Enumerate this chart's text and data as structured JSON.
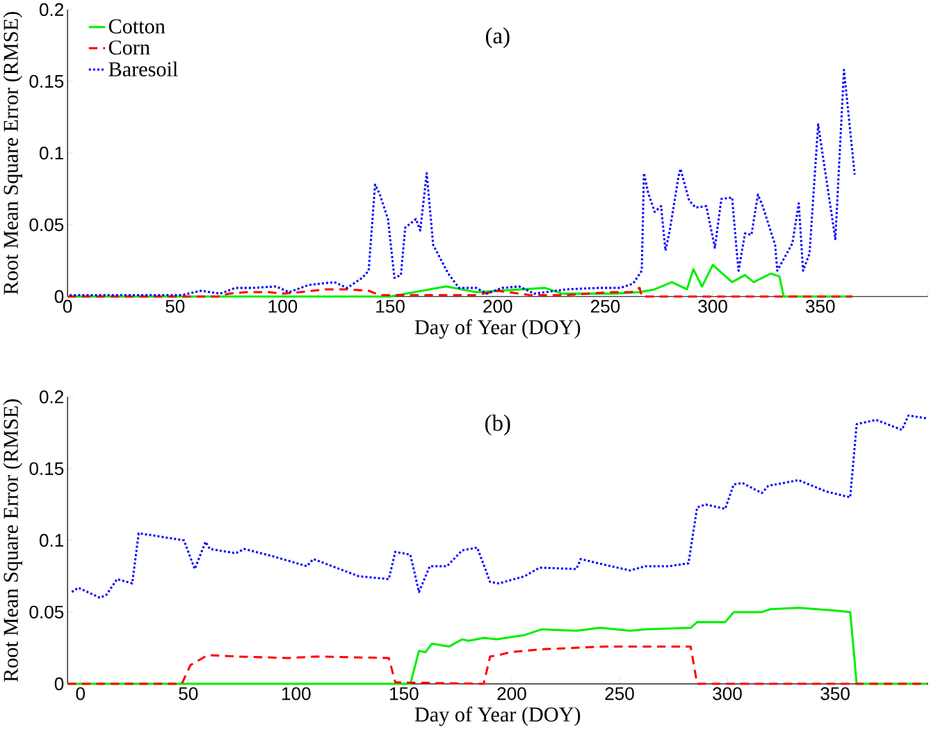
{
  "chart_data": [
    {
      "type": "line",
      "title": "(a)",
      "xlabel": "Day of Year (DOY)",
      "ylabel": "Root Mean Square Error (RMSE)",
      "xlim": [
        0,
        400
      ],
      "ylim": [
        0,
        0.2
      ],
      "xticks": [
        0,
        50,
        100,
        150,
        200,
        250,
        300,
        350,
        {
          "value": 400,
          "label": null
        }
      ],
      "yticks": [
        0,
        0.05,
        0.1,
        0.15,
        0.2
      ],
      "legend": "top left",
      "series": [
        {
          "name": "Cotton",
          "color": "#00ee00",
          "line_style": "solid",
          "x": [
            0,
            150,
            176,
            190,
            222,
            230,
            254,
            266,
            273,
            281,
            288,
            291,
            295,
            300,
            309,
            315,
            319,
            327,
            331,
            333,
            365
          ],
          "values": [
            0,
            0,
            0.007,
            0.003,
            0.006,
            0.002,
            0.002,
            0.003,
            0.005,
            0.01,
            0.005,
            0.019,
            0.007,
            0.022,
            0.01,
            0.015,
            0.01,
            0.016,
            0.014,
            0,
            0
          ]
        },
        {
          "name": "Corn",
          "color": "#ff0000",
          "line_style": "dashed",
          "x": [
            0,
            70,
            75,
            83,
            94,
            100,
            108,
            120,
            130,
            140,
            145,
            190,
            200,
            205,
            215,
            232,
            252,
            262,
            266,
            267,
            365
          ],
          "values": [
            0,
            0,
            0.002,
            0.003,
            0.003,
            0.002,
            0.003,
            0.005,
            0.005,
            0.004,
            0.001,
            0.001,
            0.004,
            0.003,
            0.001,
            0.001,
            0.003,
            0.003,
            0.006,
            0,
            0
          ]
        },
        {
          "name": "Baresoil",
          "color": "#0000ff",
          "line_style": "dotted",
          "x": [
            1,
            53,
            62,
            71,
            78,
            86,
            97,
            103,
            112,
            124,
            130,
            137,
            140,
            143,
            145,
            149,
            152,
            155,
            157,
            162,
            164,
            167,
            170,
            177,
            182,
            190,
            195,
            202,
            210,
            217,
            232,
            247,
            257,
            263,
            267,
            268,
            270,
            273,
            276,
            278,
            280,
            284,
            285,
            289,
            292,
            297,
            301,
            304,
            309,
            311,
            312,
            315,
            318,
            321,
            323,
            329,
            330,
            337,
            340,
            342,
            345,
            349,
            357,
            361,
            366
          ],
          "values": [
            0.001,
            0.001,
            0.004,
            0.002,
            0.006,
            0.006,
            0.007,
            0.003,
            0.008,
            0.01,
            0.006,
            0.013,
            0.018,
            0.078,
            0.072,
            0.054,
            0.013,
            0.015,
            0.048,
            0.054,
            0.046,
            0.086,
            0.036,
            0.016,
            0.006,
            0.006,
            0.002,
            0.006,
            0.007,
            0.002,
            0.005,
            0.006,
            0.006,
            0.009,
            0.018,
            0.086,
            0.072,
            0.059,
            0.063,
            0.032,
            0.046,
            0.083,
            0.089,
            0.067,
            0.062,
            0.063,
            0.034,
            0.068,
            0.069,
            0.034,
            0.018,
            0.044,
            0.043,
            0.071,
            0.064,
            0.036,
            0.018,
            0.037,
            0.065,
            0.018,
            0.03,
            0.12,
            0.04,
            0.158,
            0.085
          ]
        }
      ]
    },
    {
      "type": "line",
      "title": "(b)",
      "xlabel": "Day of Year (DOY)",
      "ylabel": "Root Mean Square Error (RMSE)",
      "xlim": [
        -6,
        393
      ],
      "ylim": [
        0,
        0.2
      ],
      "xticks": [
        0,
        50,
        100,
        150,
        200,
        250,
        300,
        350
      ],
      "yticks": [
        0,
        0.05,
        0.1,
        0.15,
        0.2
      ],
      "series": [
        {
          "color": "#00ee00",
          "line_style": "solid",
          "x": [
            -6,
            153,
            157,
            160,
            163,
            171,
            177,
            180,
            187,
            193,
            206,
            214,
            230,
            241,
            255,
            262,
            283,
            286,
            299,
            303,
            316,
            320,
            333,
            350,
            357,
            360,
            393
          ],
          "values": [
            0,
            0,
            0.023,
            0.022,
            0.028,
            0.026,
            0.031,
            0.03,
            0.032,
            0.031,
            0.034,
            0.038,
            0.037,
            0.039,
            0.037,
            0.038,
            0.039,
            0.043,
            0.043,
            0.05,
            0.05,
            0.052,
            0.053,
            0.051,
            0.05,
            0,
            0
          ]
        },
        {
          "color": "#ff0000",
          "line_style": "dashed",
          "x": [
            -6,
            47,
            51,
            59,
            73,
            96,
            110,
            143,
            146,
            187,
            190,
            194,
            199,
            213,
            243,
            273,
            278,
            283,
            286,
            393
          ],
          "values": [
            0,
            0,
            0.013,
            0.02,
            0.019,
            0.018,
            0.019,
            0.018,
            0.001,
            0,
            0.019,
            0.02,
            0.022,
            0.024,
            0.026,
            0.026,
            0.026,
            0.026,
            0,
            0
          ]
        },
        {
          "color": "#0000ff",
          "line_style": "dotted",
          "x": [
            -4,
            -1,
            9,
            12,
            17,
            24,
            27,
            48,
            53,
            58,
            60,
            72,
            76,
            89,
            105,
            108,
            129,
            143,
            146,
            153,
            157,
            162,
            170,
            177,
            184,
            190,
            194,
            206,
            213,
            230,
            232,
            243,
            255,
            262,
            273,
            282,
            286,
            290,
            299,
            303,
            307,
            316,
            319,
            333,
            346,
            357,
            360,
            369,
            381,
            384,
            393
          ],
          "values": [
            0.064,
            0.067,
            0.06,
            0.062,
            0.073,
            0.07,
            0.105,
            0.1,
            0.08,
            0.099,
            0.094,
            0.091,
            0.094,
            0.089,
            0.082,
            0.087,
            0.075,
            0.073,
            0.092,
            0.09,
            0.064,
            0.082,
            0.082,
            0.093,
            0.095,
            0.071,
            0.07,
            0.075,
            0.081,
            0.08,
            0.087,
            0.083,
            0.079,
            0.082,
            0.082,
            0.084,
            0.123,
            0.125,
            0.122,
            0.139,
            0.14,
            0.133,
            0.138,
            0.142,
            0.134,
            0.13,
            0.181,
            0.184,
            0.177,
            0.187,
            0.185
          ]
        }
      ]
    }
  ]
}
